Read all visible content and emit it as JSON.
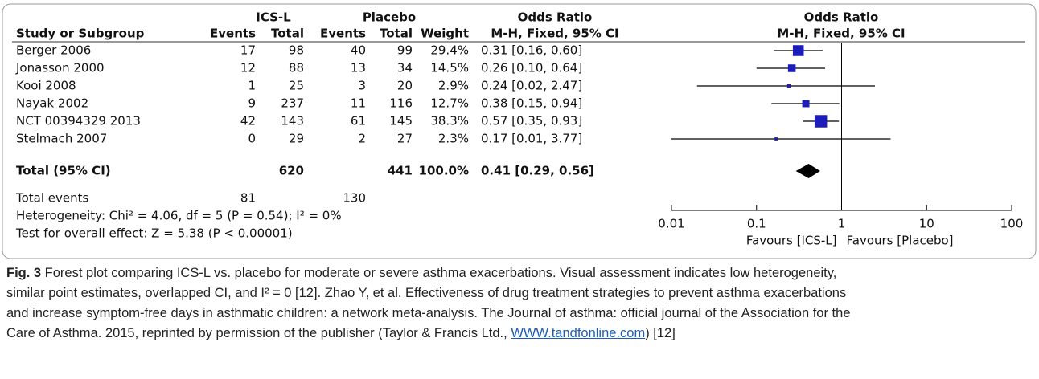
{
  "table": {
    "group_headers": [
      "ICS-L",
      "Placebo",
      "Odds Ratio",
      "Odds Ratio"
    ],
    "columns": [
      "Study or Subgroup",
      "Events",
      "Total",
      "Events",
      "Total",
      "Weight",
      "M-H, Fixed, 95% CI",
      "M-H, Fixed, 95% CI"
    ],
    "rows": [
      [
        "Berger 2006",
        "17",
        "98",
        "40",
        "99",
        "29.4%",
        "0.31 [0.16, 0.60]"
      ],
      [
        "Jonasson 2000",
        "12",
        "88",
        "13",
        "34",
        "14.5%",
        "0.26 [0.10, 0.64]"
      ],
      [
        "Kooi 2008",
        "1",
        "25",
        "3",
        "20",
        "2.9%",
        "0.24 [0.02, 2.47]"
      ],
      [
        "Nayak 2002",
        "9",
        "237",
        "11",
        "116",
        "12.7%",
        "0.38 [0.15, 0.94]"
      ],
      [
        "NCT 00394329 2013",
        "42",
        "143",
        "61",
        "145",
        "38.3%",
        "0.57 [0.35, 0.93]"
      ],
      [
        "Stelmach 2007",
        "0",
        "29",
        "2",
        "27",
        "2.3%",
        "0.17 [0.01, 3.77]"
      ]
    ],
    "total": [
      "Total (95% CI)",
      "620",
      "441",
      "100.0%",
      "0.41 [0.29, 0.56]"
    ],
    "total_events": [
      "Total events",
      "81",
      "130"
    ],
    "heterogeneity": "Heterogeneity: Chi² = 4.06, df = 5 (P = 0.54); I² = 0%",
    "overall_effect": "Test for overall effect: Z = 5.38 (P < 0.00001)"
  },
  "plot": {
    "log_scale": true,
    "xlim": [
      0.01,
      100
    ],
    "xticks": [
      0.01,
      0.1,
      1,
      10,
      100
    ],
    "reference": 1,
    "color": "#1c1cb8",
    "points": [
      {
        "or": 0.31,
        "lo": 0.16,
        "hi": 0.6,
        "weight": 29.4
      },
      {
        "or": 0.26,
        "lo": 0.1,
        "hi": 0.64,
        "weight": 14.5
      },
      {
        "or": 0.24,
        "lo": 0.02,
        "hi": 2.47,
        "weight": 2.9
      },
      {
        "or": 0.38,
        "lo": 0.15,
        "hi": 0.94,
        "weight": 12.7
      },
      {
        "or": 0.57,
        "lo": 0.35,
        "hi": 0.93,
        "weight": 38.3
      },
      {
        "or": 0.17,
        "lo": 0.01,
        "hi": 3.77,
        "weight": 2.3
      }
    ],
    "total": {
      "or": 0.41,
      "lo": 0.29,
      "hi": 0.56
    },
    "left_label": "Favours [ICS-L]",
    "right_label": "Favours [Placebo]"
  },
  "caption": {
    "label": "Fig. 3",
    "lines": [
      " Forest plot comparing ICS-L vs. placebo for moderate or severe asthma exacerbations. Visual assessment indicates low heterogeneity,",
      "similar point estimates, overlapped CI, and I² = 0 [12]. Zhao Y, et al. Effectiveness of drug treatment strategies to prevent asthma exacerbations",
      "and increase symptom-free days in asthmatic children: a network meta-analysis. The Journal of asthma: official journal of the Association for the",
      "Care of Asthma. 2015, reprinted by permission of the publisher (Taylor & Francis Ltd., "
    ],
    "link": "WWW.tandfonline.com",
    "end": ") [12]"
  }
}
